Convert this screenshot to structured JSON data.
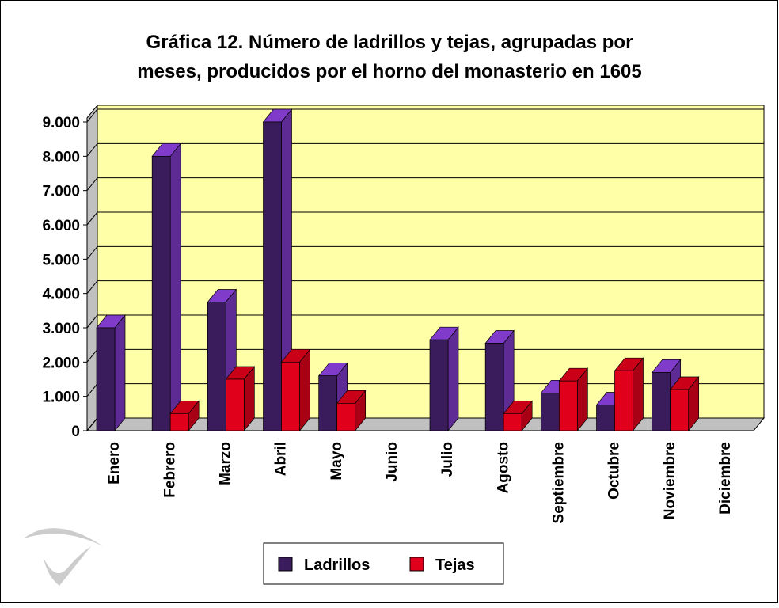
{
  "chart_data": {
    "type": "bar3d",
    "title": "Gráfica 12. Número de ladrillos y tejas, agrupadas por meses, producidos por el horno del monasterio en 1605",
    "categories": [
      "Enero",
      "Febrero",
      "Marzo",
      "Abril",
      "Mayo",
      "Junio",
      "Julio",
      "Agosto",
      "Septiembre",
      "Octubre",
      "Noviembre",
      "Diciembre"
    ],
    "series": [
      {
        "name": "Ladrillos",
        "color": "#3a1b5c",
        "values": [
          3000,
          8000,
          3750,
          9000,
          1600,
          0,
          2650,
          2550,
          1100,
          750,
          1700,
          0
        ]
      },
      {
        "name": "Tejas",
        "color": "#e0001b",
        "values": [
          0,
          500,
          1500,
          2000,
          800,
          0,
          0,
          500,
          1450,
          1750,
          1200,
          0
        ]
      }
    ],
    "ylim": [
      0,
      9000
    ],
    "yticks": [
      0,
      {
        "value": 1000,
        "label": "1.000"
      },
      {
        "value": 2000,
        "label": "2.000"
      },
      {
        "value": 3000,
        "label": "3.000"
      },
      {
        "value": 4000,
        "label": "4.000"
      },
      {
        "value": 5000,
        "label": "5.000"
      },
      {
        "value": 6000,
        "label": "6.000"
      },
      {
        "value": 7000,
        "label": "7.000"
      },
      {
        "value": 8000,
        "label": "8.000"
      },
      {
        "value": 9000,
        "label": "9.000"
      }
    ],
    "grid": true,
    "legend": "bottom"
  }
}
